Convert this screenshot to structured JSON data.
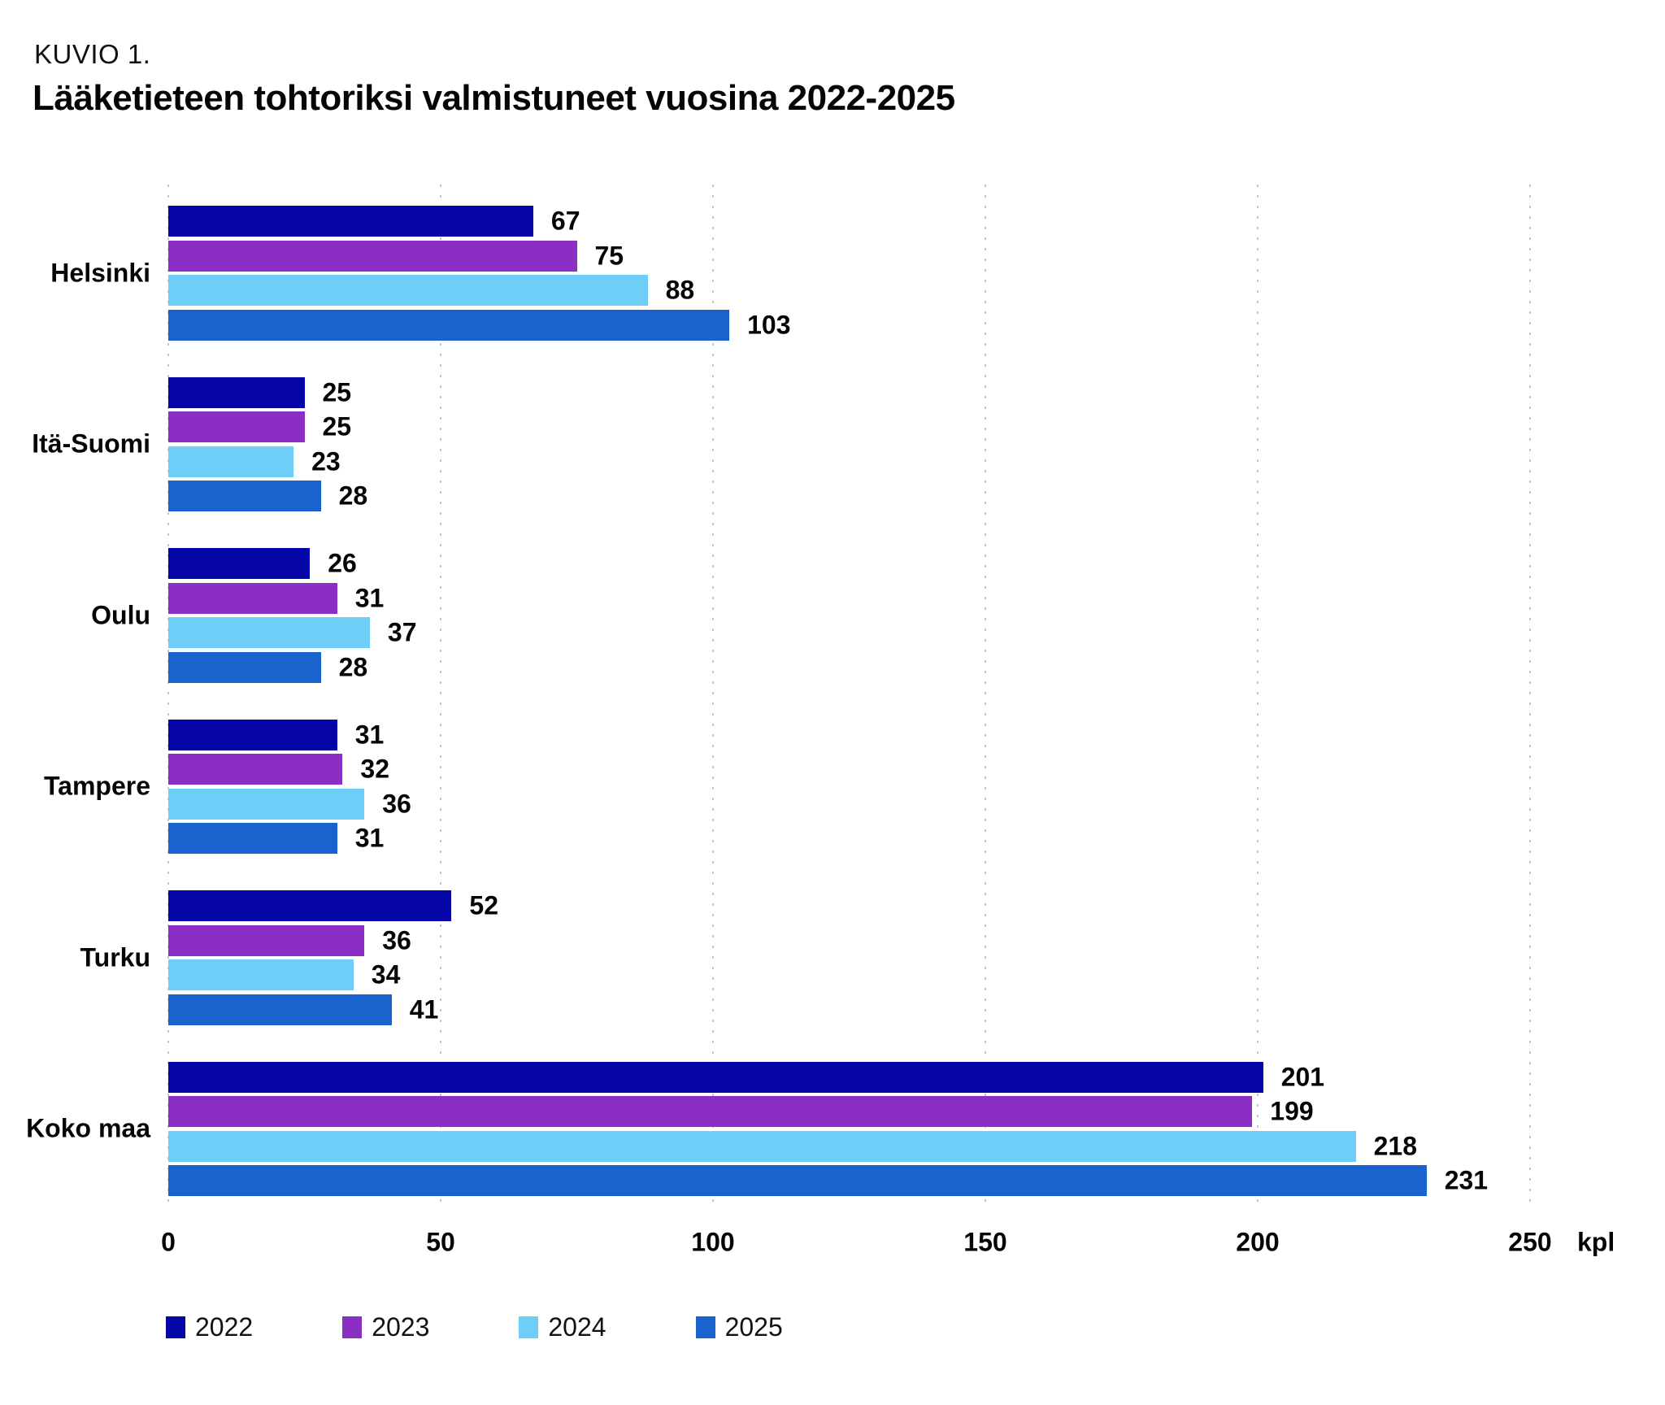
{
  "figure": {
    "kicker": "KUVIO 1.",
    "title": "Lääketieteen tohtoriksi valmistuneet vuosina 2022-2025"
  },
  "chart_data": {
    "type": "bar",
    "orientation": "horizontal",
    "title": "Lääketieteen tohtoriksi valmistuneet vuosina 2022-2025",
    "categories": [
      "Helsinki",
      "Itä-Suomi",
      "Oulu",
      "Tampere",
      "Turku",
      "Koko maa"
    ],
    "series": [
      {
        "name": "2022",
        "color": "#0505A8",
        "values": [
          67,
          25,
          26,
          31,
          52,
          201
        ]
      },
      {
        "name": "2023",
        "color": "#8B2EC3",
        "values": [
          75,
          25,
          31,
          32,
          36,
          199
        ]
      },
      {
        "name": "2024",
        "color": "#6DCFF7",
        "values": [
          88,
          23,
          37,
          36,
          34,
          218
        ]
      },
      {
        "name": "2025",
        "color": "#1A63CF",
        "values": [
          103,
          28,
          28,
          31,
          41,
          231
        ]
      }
    ],
    "x_ticks": [
      0,
      50,
      100,
      150,
      200,
      250
    ],
    "x_unit": "kpl",
    "xlim": [
      0,
      250
    ],
    "grid": "vertical-dotted",
    "gridline_color": "#c6c6c6",
    "legend_position": "bottom",
    "value_labels": true
  }
}
